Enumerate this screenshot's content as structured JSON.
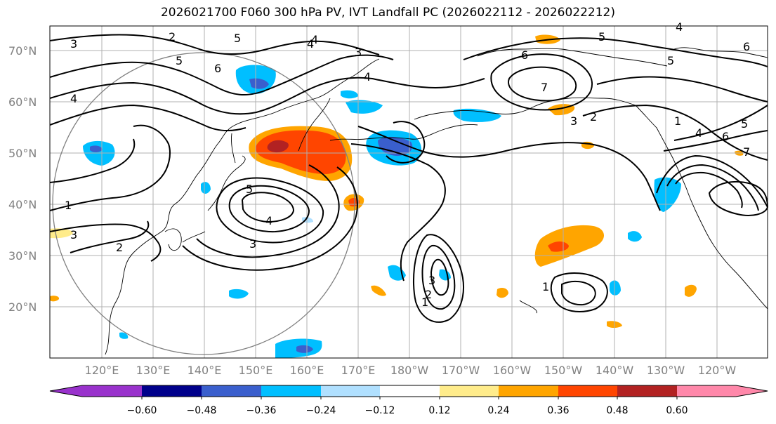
{
  "title": "2026021700 F060 300 hPa PV, IVT Landfall PC (2026022112 - 2026022212)",
  "lat_labels": [
    "70°N",
    "60°N",
    "50°N",
    "40°N",
    "30°N",
    "20°N"
  ],
  "lon_labels": [
    "120°E",
    "130°E",
    "140°E",
    "150°E",
    "160°E",
    "170°E",
    "180°W",
    "170°W",
    "160°W",
    "150°W",
    "140°W",
    "130°W",
    "120°W"
  ],
  "colorbar": {
    "tick_labels": [
      "−0.60",
      "−0.48",
      "−0.36",
      "−0.24",
      "−0.12",
      "0.12",
      "0.24",
      "0.36",
      "0.48",
      "0.60"
    ],
    "colors": [
      "#9932cc",
      "#00008b",
      "#3a5fcd",
      "#00bfff",
      "#b0e0ff",
      "#ffffff",
      "#ffec8b",
      "#ffa500",
      "#ff4500",
      "#b22222",
      "#ff88aa"
    ]
  },
  "contour_labels": [
    "2",
    "3",
    "5",
    "4",
    "4",
    "5",
    "6",
    "4",
    "3",
    "4",
    "1",
    "3",
    "2",
    "5",
    "4",
    "3",
    "3",
    "2",
    "1",
    "6",
    "7",
    "5",
    "3",
    "2",
    "1",
    "4",
    "6",
    "5",
    "7",
    "6",
    "4",
    "5",
    "1"
  ],
  "colors": {
    "pv_positive": "#ff4500",
    "pv_negative": "#00bfff",
    "contour": "#000000",
    "grid": "#b0b0b0",
    "coast": "#000000"
  }
}
